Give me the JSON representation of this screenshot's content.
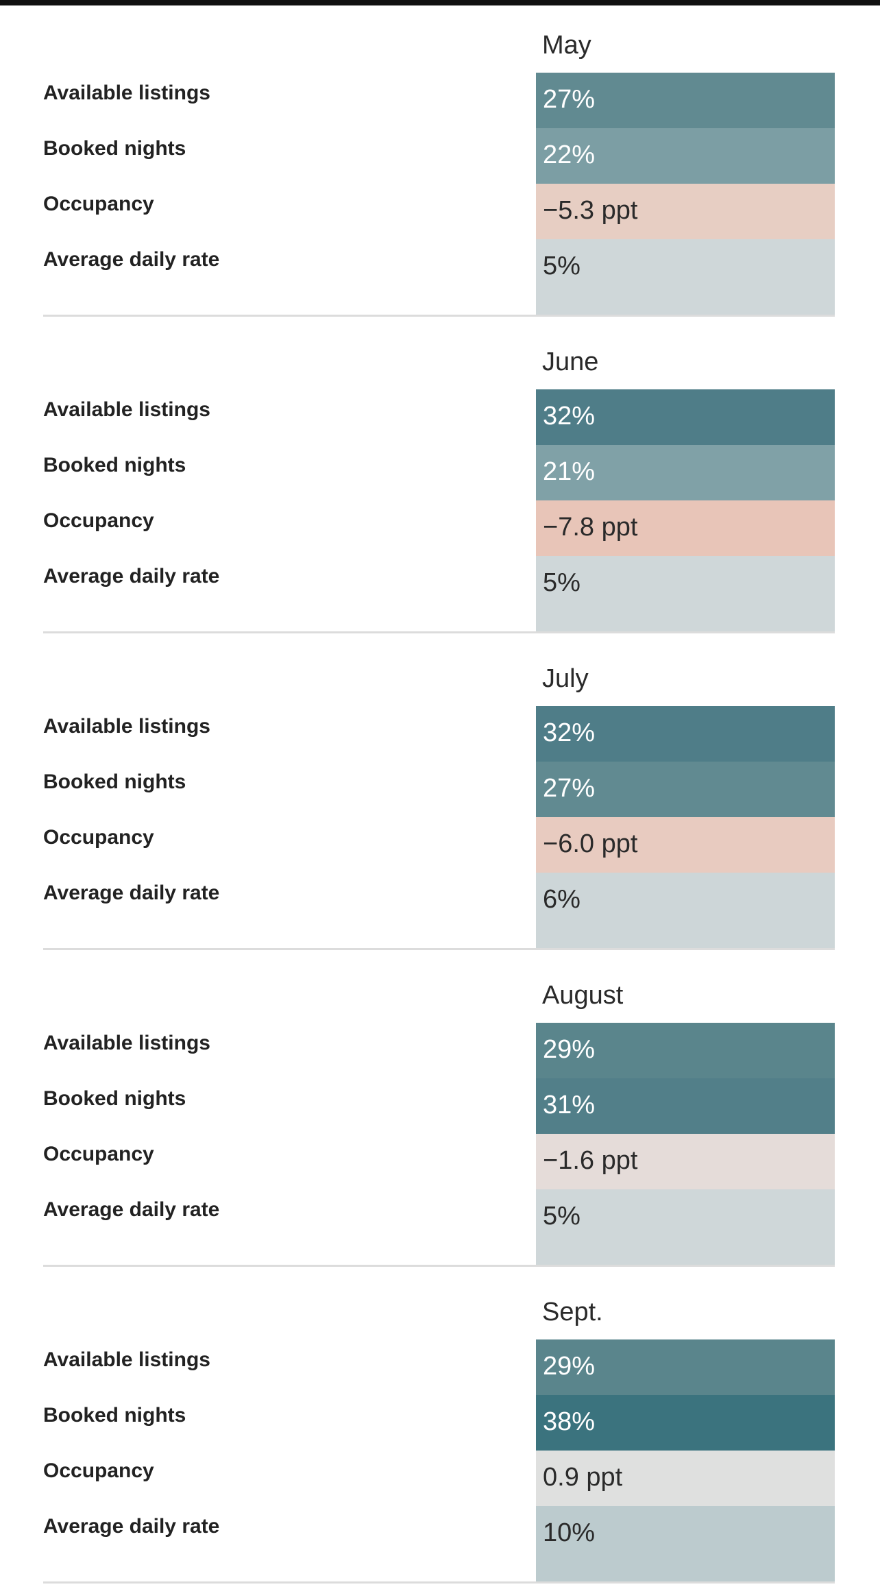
{
  "colors": {
    "top_bar": "#111111",
    "divider": "#dcdcdc",
    "label_text": "#222222",
    "light_text": "#ffffff",
    "dark_text": "#2a2a2a"
  },
  "chart_data": {
    "type": "table",
    "metrics": [
      "Available listings",
      "Booked nights",
      "Occupancy",
      "Average daily rate"
    ],
    "months": [
      {
        "name": "May",
        "rows": [
          {
            "metric": "Available listings",
            "value": 27,
            "display": "27%",
            "color": "#618a91",
            "text_color": "#ffffff"
          },
          {
            "metric": "Booked nights",
            "value": 22,
            "display": "22%",
            "color": "#7c9ea4",
            "text_color": "#ffffff"
          },
          {
            "metric": "Occupancy",
            "value": -5.3,
            "display": "−5.3 ppt",
            "color": "#e7cec3",
            "text_color": "#2a2a2a"
          },
          {
            "metric": "Average daily rate",
            "value": 5,
            "display": "5%",
            "color": "#cfd7d9",
            "text_color": "#2a2a2a"
          }
        ]
      },
      {
        "name": "June",
        "rows": [
          {
            "metric": "Available listings",
            "value": 32,
            "display": "32%",
            "color": "#4f7d88",
            "text_color": "#ffffff"
          },
          {
            "metric": "Booked nights",
            "value": 21,
            "display": "21%",
            "color": "#80a1a7",
            "text_color": "#ffffff"
          },
          {
            "metric": "Occupancy",
            "value": -7.8,
            "display": "−7.8 ppt",
            "color": "#e8c5b8",
            "text_color": "#2a2a2a"
          },
          {
            "metric": "Average daily rate",
            "value": 5,
            "display": "5%",
            "color": "#cfd7d9",
            "text_color": "#2a2a2a"
          }
        ]
      },
      {
        "name": "July",
        "rows": [
          {
            "metric": "Available listings",
            "value": 32,
            "display": "32%",
            "color": "#4f7d88",
            "text_color": "#ffffff"
          },
          {
            "metric": "Booked nights",
            "value": 27,
            "display": "27%",
            "color": "#618a91",
            "text_color": "#ffffff"
          },
          {
            "metric": "Occupancy",
            "value": -6.0,
            "display": "−6.0 ppt",
            "color": "#e8cbc0",
            "text_color": "#2a2a2a"
          },
          {
            "metric": "Average daily rate",
            "value": 6,
            "display": "6%",
            "color": "#cdd6d8",
            "text_color": "#2a2a2a"
          }
        ]
      },
      {
        "name": "August",
        "rows": [
          {
            "metric": "Available listings",
            "value": 29,
            "display": "29%",
            "color": "#5a858c",
            "text_color": "#ffffff"
          },
          {
            "metric": "Booked nights",
            "value": 31,
            "display": "31%",
            "color": "#527f89",
            "text_color": "#ffffff"
          },
          {
            "metric": "Occupancy",
            "value": -1.6,
            "display": "−1.6 ppt",
            "color": "#e5dcd9",
            "text_color": "#2a2a2a"
          },
          {
            "metric": "Average daily rate",
            "value": 5,
            "display": "5%",
            "color": "#cfd7d9",
            "text_color": "#2a2a2a"
          }
        ]
      },
      {
        "name": "Sept.",
        "rows": [
          {
            "metric": "Available listings",
            "value": 29,
            "display": "29%",
            "color": "#5a858c",
            "text_color": "#ffffff"
          },
          {
            "metric": "Booked nights",
            "value": 38,
            "display": "38%",
            "color": "#3b737e",
            "text_color": "#ffffff"
          },
          {
            "metric": "Occupancy",
            "value": 0.9,
            "display": "0.9 ppt",
            "color": "#dfe0df",
            "text_color": "#2a2a2a"
          },
          {
            "metric": "Average daily rate",
            "value": 10,
            "display": "10%",
            "color": "#bccbce",
            "text_color": "#2a2a2a"
          }
        ]
      }
    ]
  }
}
